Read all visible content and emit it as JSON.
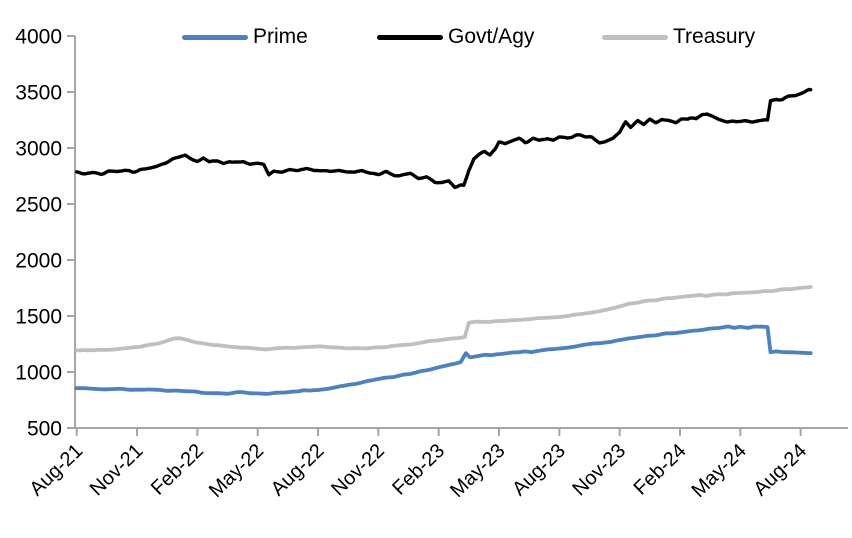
{
  "chart_data": {
    "type": "line",
    "title": "",
    "xlabel": "",
    "ylabel": "",
    "ylim": [
      500,
      4000
    ],
    "y_ticks": [
      4000,
      3500,
      3000,
      2500,
      2000,
      1500,
      1000,
      500
    ],
    "x_unit": "months-since-Aug-2021",
    "x_tick_interval_months": 3,
    "x_tick_labels": [
      "Aug-21",
      "Nov-21",
      "Feb-22",
      "May-22",
      "Aug-22",
      "Nov-22",
      "Feb-23",
      "May-23",
      "Aug-23",
      "Nov-23",
      "Feb-24",
      "May-24",
      "Aug-24"
    ],
    "grid": false,
    "legend_position": "top",
    "axis_color": "#a6a6a6",
    "series": [
      {
        "name": "Prime",
        "color": "#4f81bd",
        "points": [
          [
            0,
            855
          ],
          [
            0.5,
            851
          ],
          [
            1,
            848
          ],
          [
            1.5,
            846
          ],
          [
            2,
            848
          ],
          [
            2.5,
            845
          ],
          [
            3,
            845
          ],
          [
            3.5,
            841
          ],
          [
            4,
            838
          ],
          [
            4.5,
            835
          ],
          [
            5,
            833
          ],
          [
            5.5,
            827
          ],
          [
            6,
            820
          ],
          [
            6.5,
            815
          ],
          [
            7,
            813
          ],
          [
            7.5,
            808
          ],
          [
            8,
            822
          ],
          [
            8.3,
            820
          ],
          [
            8.6,
            810
          ],
          [
            9,
            812
          ],
          [
            9.5,
            806
          ],
          [
            10,
            812
          ],
          [
            10.5,
            818
          ],
          [
            11,
            824
          ],
          [
            11.3,
            835
          ],
          [
            11.6,
            830
          ],
          [
            12,
            839
          ],
          [
            12.5,
            852
          ],
          [
            13,
            869
          ],
          [
            13.5,
            884
          ],
          [
            14,
            899
          ],
          [
            14.5,
            917
          ],
          [
            15,
            935
          ],
          [
            15.5,
            950
          ],
          [
            16,
            964
          ],
          [
            16.5,
            983
          ],
          [
            17,
            1003
          ],
          [
            17.5,
            1022
          ],
          [
            18,
            1042
          ],
          [
            18.4,
            1058
          ],
          [
            18.8,
            1075
          ],
          [
            19.1,
            1090
          ],
          [
            19.35,
            1165
          ],
          [
            19.55,
            1130
          ],
          [
            19.8,
            1140
          ],
          [
            20,
            1145
          ],
          [
            20.3,
            1155
          ],
          [
            20.6,
            1148
          ],
          [
            21,
            1160
          ],
          [
            21.5,
            1170
          ],
          [
            22,
            1180
          ],
          [
            22.3,
            1186
          ],
          [
            22.6,
            1178
          ],
          [
            23,
            1190
          ],
          [
            23.5,
            1200
          ],
          [
            24,
            1210
          ],
          [
            24.5,
            1222
          ],
          [
            25,
            1235
          ],
          [
            25.5,
            1248
          ],
          [
            26,
            1258
          ],
          [
            26.5,
            1270
          ],
          [
            27,
            1285
          ],
          [
            27.5,
            1298
          ],
          [
            28,
            1310
          ],
          [
            28.5,
            1322
          ],
          [
            29,
            1335
          ],
          [
            29.5,
            1345
          ],
          [
            30,
            1352
          ],
          [
            30.5,
            1362
          ],
          [
            31,
            1375
          ],
          [
            31.5,
            1388
          ],
          [
            32,
            1398
          ],
          [
            32.4,
            1408
          ],
          [
            32.7,
            1395
          ],
          [
            33,
            1405
          ],
          [
            33.4,
            1398
          ],
          [
            33.7,
            1405
          ],
          [
            34,
            1403
          ],
          [
            34.35,
            1400
          ],
          [
            34.5,
            1178
          ],
          [
            34.8,
            1185
          ],
          [
            35.2,
            1180
          ],
          [
            35.6,
            1178
          ],
          [
            36,
            1175
          ],
          [
            36.5,
            1168
          ]
        ]
      },
      {
        "name": "Govt/Agy",
        "color": "#000000",
        "points": [
          [
            0,
            2780
          ],
          [
            0.4,
            2770
          ],
          [
            0.8,
            2782
          ],
          [
            1.2,
            2772
          ],
          [
            1.6,
            2788
          ],
          [
            2,
            2782
          ],
          [
            2.4,
            2795
          ],
          [
            2.8,
            2790
          ],
          [
            3.2,
            2805
          ],
          [
            3.6,
            2818
          ],
          [
            4,
            2835
          ],
          [
            4.4,
            2865
          ],
          [
            4.8,
            2900
          ],
          [
            5.1,
            2920
          ],
          [
            5.4,
            2940
          ],
          [
            5.7,
            2905
          ],
          [
            6,
            2880
          ],
          [
            6.3,
            2908
          ],
          [
            6.6,
            2872
          ],
          [
            7,
            2888
          ],
          [
            7.3,
            2868
          ],
          [
            7.6,
            2886
          ],
          [
            8,
            2872
          ],
          [
            8.3,
            2882
          ],
          [
            8.6,
            2852
          ],
          [
            9,
            2858
          ],
          [
            9.3,
            2845
          ],
          [
            9.55,
            2762
          ],
          [
            9.8,
            2800
          ],
          [
            10.2,
            2792
          ],
          [
            10.6,
            2812
          ],
          [
            11,
            2800
          ],
          [
            11.4,
            2812
          ],
          [
            11.8,
            2798
          ],
          [
            12.2,
            2806
          ],
          [
            12.6,
            2792
          ],
          [
            13,
            2798
          ],
          [
            13.4,
            2786
          ],
          [
            13.8,
            2778
          ],
          [
            14.2,
            2792
          ],
          [
            14.6,
            2770
          ],
          [
            15,
            2768
          ],
          [
            15.4,
            2782
          ],
          [
            15.8,
            2752
          ],
          [
            16.2,
            2758
          ],
          [
            16.6,
            2768
          ],
          [
            17,
            2728
          ],
          [
            17.4,
            2745
          ],
          [
            17.8,
            2698
          ],
          [
            18.2,
            2692
          ],
          [
            18.5,
            2710
          ],
          [
            18.8,
            2655
          ],
          [
            19.05,
            2668
          ],
          [
            19.25,
            2662
          ],
          [
            19.5,
            2800
          ],
          [
            19.75,
            2905
          ],
          [
            20,
            2940
          ],
          [
            20.3,
            2968
          ],
          [
            20.55,
            2945
          ],
          [
            20.8,
            2990
          ],
          [
            21,
            3048
          ],
          [
            21.3,
            3032
          ],
          [
            21.7,
            3062
          ],
          [
            22,
            3080
          ],
          [
            22.3,
            3052
          ],
          [
            22.7,
            3085
          ],
          [
            23,
            3068
          ],
          [
            23.4,
            3090
          ],
          [
            23.7,
            3072
          ],
          [
            24,
            3098
          ],
          [
            24.4,
            3085
          ],
          [
            24.8,
            3112
          ],
          [
            25.2,
            3110
          ],
          [
            25.6,
            3095
          ],
          [
            26,
            3048
          ],
          [
            26.3,
            3062
          ],
          [
            26.7,
            3090
          ],
          [
            27,
            3135
          ],
          [
            27.3,
            3228
          ],
          [
            27.55,
            3185
          ],
          [
            27.9,
            3242
          ],
          [
            28.2,
            3208
          ],
          [
            28.5,
            3252
          ],
          [
            28.8,
            3230
          ],
          [
            29.1,
            3258
          ],
          [
            29.5,
            3242
          ],
          [
            29.8,
            3228
          ],
          [
            30.1,
            3252
          ],
          [
            30.5,
            3272
          ],
          [
            30.8,
            3258
          ],
          [
            31.1,
            3298
          ],
          [
            31.35,
            3312
          ],
          [
            31.7,
            3268
          ],
          [
            32,
            3248
          ],
          [
            32.4,
            3238
          ],
          [
            32.8,
            3232
          ],
          [
            33.2,
            3240
          ],
          [
            33.6,
            3234
          ],
          [
            34,
            3242
          ],
          [
            34.35,
            3246
          ],
          [
            34.5,
            3425
          ],
          [
            34.8,
            3442
          ],
          [
            35.1,
            3428
          ],
          [
            35.4,
            3458
          ],
          [
            35.7,
            3465
          ],
          [
            36,
            3488
          ],
          [
            36.3,
            3512
          ],
          [
            36.5,
            3520
          ]
        ]
      },
      {
        "name": "Treasury",
        "color": "#bfbfbf",
        "points": [
          [
            0,
            1196
          ],
          [
            0.5,
            1192
          ],
          [
            1,
            1198
          ],
          [
            1.5,
            1196
          ],
          [
            2,
            1202
          ],
          [
            2.5,
            1210
          ],
          [
            3,
            1222
          ],
          [
            3.5,
            1238
          ],
          [
            4,
            1255
          ],
          [
            4.4,
            1275
          ],
          [
            4.8,
            1298
          ],
          [
            5.1,
            1302
          ],
          [
            5.5,
            1285
          ],
          [
            6,
            1262
          ],
          [
            6.5,
            1248
          ],
          [
            7,
            1238
          ],
          [
            7.5,
            1228
          ],
          [
            8,
            1222
          ],
          [
            8.5,
            1216
          ],
          [
            9,
            1210
          ],
          [
            9.4,
            1202
          ],
          [
            9.8,
            1210
          ],
          [
            10.3,
            1215
          ],
          [
            11,
            1220
          ],
          [
            11.5,
            1223
          ],
          [
            12,
            1226
          ],
          [
            12.5,
            1222
          ],
          [
            13,
            1218
          ],
          [
            13.5,
            1214
          ],
          [
            14,
            1211
          ],
          [
            14.5,
            1214
          ],
          [
            15,
            1218
          ],
          [
            15.5,
            1224
          ],
          [
            16,
            1235
          ],
          [
            16.5,
            1247
          ],
          [
            17,
            1258
          ],
          [
            17.5,
            1272
          ],
          [
            18,
            1284
          ],
          [
            18.5,
            1294
          ],
          [
            19,
            1302
          ],
          [
            19.3,
            1310
          ],
          [
            19.5,
            1438
          ],
          [
            19.8,
            1448
          ],
          [
            20.2,
            1452
          ],
          [
            20.6,
            1446
          ],
          [
            21,
            1458
          ],
          [
            21.5,
            1462
          ],
          [
            22,
            1468
          ],
          [
            22.5,
            1473
          ],
          [
            23,
            1478
          ],
          [
            23.5,
            1484
          ],
          [
            24,
            1492
          ],
          [
            24.5,
            1502
          ],
          [
            25,
            1514
          ],
          [
            25.5,
            1528
          ],
          [
            26,
            1545
          ],
          [
            26.5,
            1566
          ],
          [
            27,
            1588
          ],
          [
            27.5,
            1608
          ],
          [
            28,
            1626
          ],
          [
            28.5,
            1638
          ],
          [
            29,
            1648
          ],
          [
            29.5,
            1658
          ],
          [
            30,
            1666
          ],
          [
            30.5,
            1676
          ],
          [
            31,
            1686
          ],
          [
            31.3,
            1678
          ],
          [
            31.7,
            1692
          ],
          [
            32,
            1698
          ],
          [
            32.3,
            1690
          ],
          [
            32.6,
            1700
          ],
          [
            33,
            1704
          ],
          [
            33.5,
            1710
          ],
          [
            34,
            1716
          ],
          [
            34.5,
            1724
          ],
          [
            35,
            1734
          ],
          [
            35.5,
            1744
          ],
          [
            36,
            1752
          ],
          [
            36.5,
            1760
          ]
        ]
      }
    ]
  }
}
